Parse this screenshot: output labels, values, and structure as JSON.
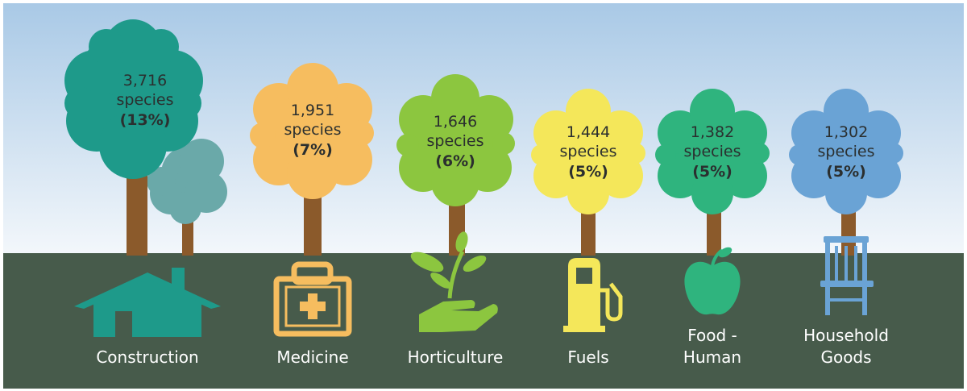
{
  "colors": {
    "sky_top": "#a9c9e6",
    "sky_bottom": "#f3f7fb",
    "ground": "#475b4b",
    "trunk": "#8b5a2b"
  },
  "chart_data": {
    "type": "pictogram",
    "unit": "species",
    "categories": [
      "Construction",
      "Medicine",
      "Horticulture",
      "Fuels",
      "Food - Human",
      "Household Goods"
    ],
    "values": [
      3716,
      1951,
      1646,
      1444,
      1382,
      1302
    ],
    "percents": [
      13,
      7,
      6,
      5,
      5,
      5
    ],
    "colors": [
      "#1e9a8a",
      "#f6bd5f",
      "#8cc63f",
      "#f4e75a",
      "#2fb47e",
      "#6aa3d5"
    ],
    "icons": [
      "house-icon",
      "medical-kit-icon",
      "seedling-hand-icon",
      "fuel-pump-icon",
      "apple-icon",
      "chair-icon"
    ]
  },
  "trees": [
    {
      "count": "3,716",
      "unit": "species",
      "pct": "(13%)"
    },
    {
      "count": "1,951",
      "unit": "species",
      "pct": "(7%)"
    },
    {
      "count": "1,646",
      "unit": "species",
      "pct": "(6%)"
    },
    {
      "count": "1,444",
      "unit": "species",
      "pct": "(5%)"
    },
    {
      "count": "1,382",
      "unit": "species",
      "pct": "(5%)"
    },
    {
      "count": "1,302",
      "unit": "species",
      "pct": "(5%)"
    }
  ],
  "labels": [
    {
      "line1": "Construction",
      "line2": ""
    },
    {
      "line1": "Medicine",
      "line2": ""
    },
    {
      "line1": "Horticulture",
      "line2": ""
    },
    {
      "line1": "Fuels",
      "line2": ""
    },
    {
      "line1": "Food -",
      "line2": "Human"
    },
    {
      "line1": "Household",
      "line2": "Goods"
    }
  ]
}
